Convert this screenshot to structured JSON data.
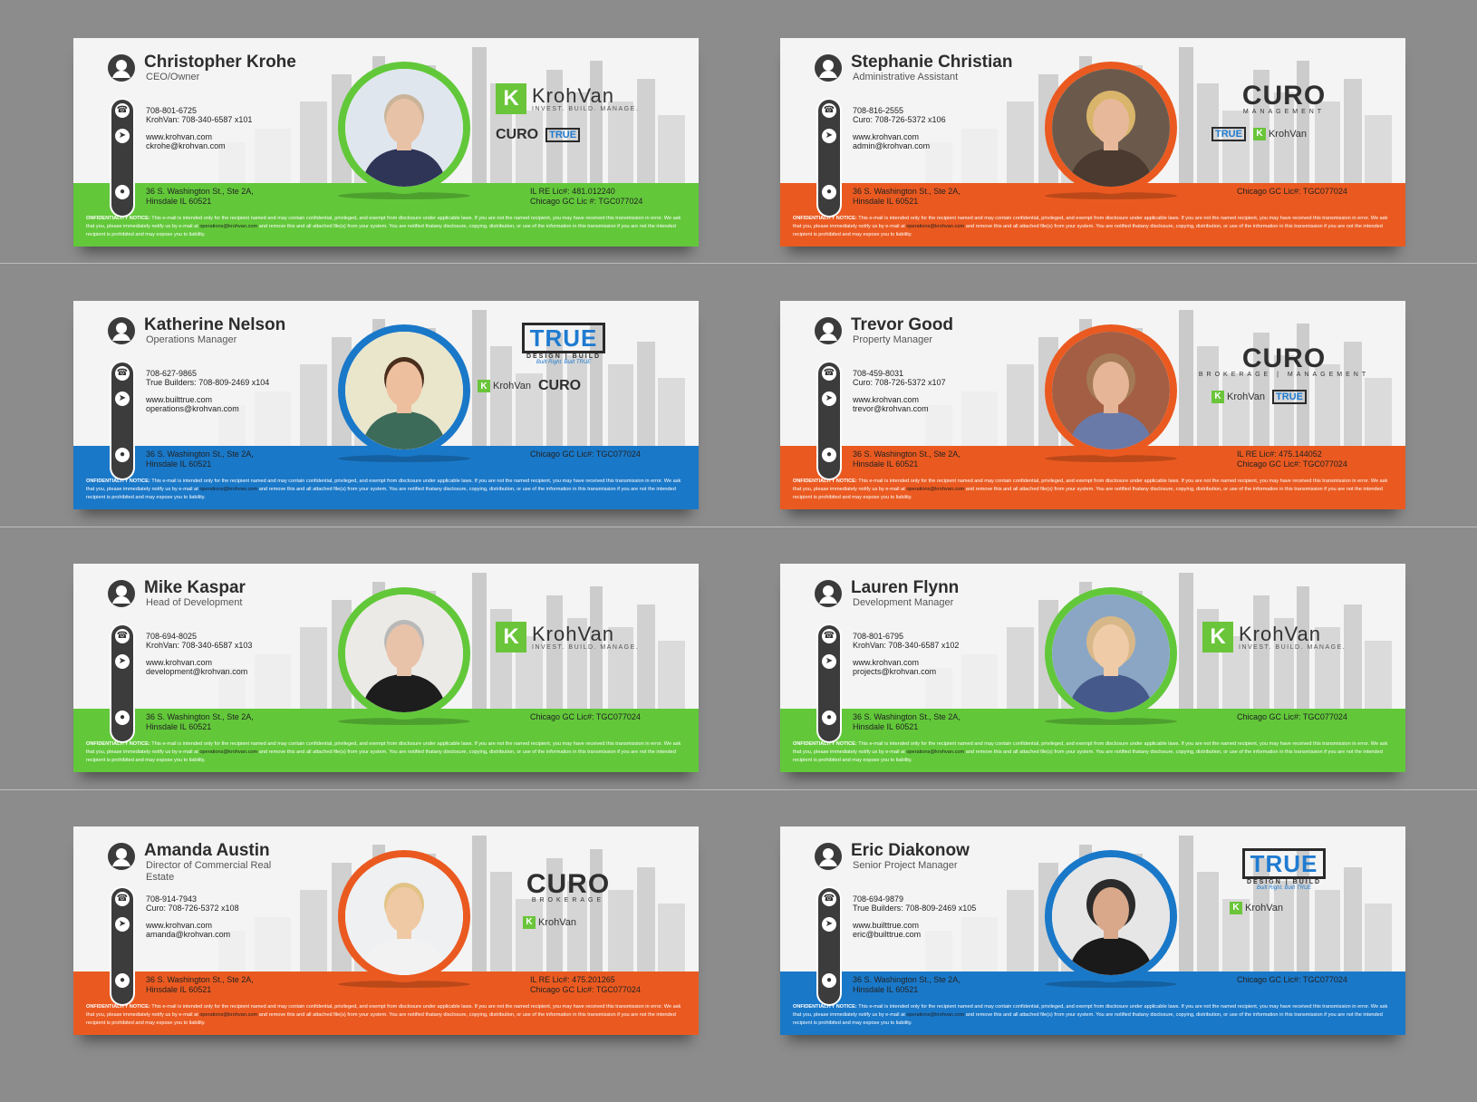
{
  "colors": {
    "green": "#62c83a",
    "orange": "#ea5a20",
    "blue": "#1a78c8"
  },
  "notice": {
    "label": "ONFIDENTIALITY NOTICE:",
    "text1": "This e-mail is intended only for the recipient named and may contain confidential, privileged, and exempt from disclosure under applicable laws. If you are not the named recipient, you may have received this transmission in error. We ask that you, please immediately notify us by e-mail at",
    "email": "operations@krohvan.com",
    "text2": "and remove this and all attached file(s) from your system. You are notified thatany disclosure, copying, distribution, or use of the information in this transmission if you are not the intended recipient is prohibited and may expose you to liability."
  },
  "brands": {
    "krohvan": "KrohVan",
    "krohvan_k": "K",
    "krohvan_tag": "INVEST. BUILD. MANAGE.",
    "curo": "CURO",
    "curo_brokerage": "BROKERAGE",
    "curo_management": "MANAGEMENT",
    "curo_brokerage_management": "BROKERAGE | MANAGEMENT",
    "true": "TRUE",
    "true_sub": "DESIGN | BUILD",
    "true_tag": "Built Right. Built TRUE"
  },
  "cards": [
    {
      "name": "Christopher Krohe",
      "title": "CEO/Owner",
      "color": "green",
      "phone1": "708-801-6725",
      "phone2": "KrohVan: 708-340-6587 x101",
      "web": "www.krohvan.com",
      "email": "ckrohe@krohvan.com",
      "addr1": "36 S. Washington St., Ste 2A,",
      "addr2": "Hinsdale IL 60521",
      "lic1": "IL RE Lic#: 481.012240",
      "lic2": "Chicago GC Lic #: TGC077024",
      "logo": "kv-main",
      "ring": "green"
    },
    {
      "name": "Stephanie Christian",
      "title": "Administrative Assistant",
      "color": "orange",
      "phone1": "708-816-2555",
      "phone2": "Curo: 708-726-5372 x106",
      "web": "www.krohvan.com",
      "email": "admin@krohvan.com",
      "addr1": "36 S. Washington St., Ste 2A,",
      "addr2": "Hinsdale IL 60521",
      "lic1": "Chicago GC Lic#: TGC077024",
      "lic2": "",
      "logo": "curo-mgmt",
      "ring": "orange"
    },
    {
      "name": "Katherine Nelson",
      "title": "Operations  Manager",
      "color": "blue",
      "phone1": "708-627-9865",
      "phone2": "True Builders: 708-809-2469 x104",
      "web": "www.builttrue.com",
      "email": "operations@krohvan.com",
      "addr1": "36 S. Washington St., Ste 2A,",
      "addr2": "Hinsdale IL 60521",
      "lic1": "Chicago GC Lic#: TGC077024",
      "lic2": "",
      "logo": "true-main",
      "ring": "blue"
    },
    {
      "name": "Trevor Good",
      "title": "Property Manager",
      "color": "orange",
      "phone1": "708-459-8031",
      "phone2": "Curo: 708-726-5372 x107",
      "web": "www.krohvan.com",
      "email": "trevor@krohvan.com",
      "addr1": "36 S. Washington St., Ste 2A,",
      "addr2": "Hinsdale IL 60521",
      "lic1": "IL RE Lic#: 475.144052",
      "lic2": "Chicago GC Lic#: TGC077024",
      "logo": "curo-bm",
      "ring": "orange"
    },
    {
      "name": "Mike Kaspar",
      "title": "Head of Development",
      "color": "green",
      "phone1": "708-694-8025",
      "phone2": "KrohVan: 708-340-6587 x103",
      "web": "www.krohvan.com",
      "email": "development@krohvan.com",
      "addr1": "36 S. Washington St., Ste 2A,",
      "addr2": "Hinsdale IL 60521",
      "lic1": "Chicago GC Lic#: TGC077024",
      "lic2": "",
      "logo": "kv-only",
      "ring": "green"
    },
    {
      "name": "Lauren Flynn",
      "title": "Development Manager",
      "color": "green",
      "phone1": "708-801-6795",
      "phone2": "KrohVan: 708-340-6587 x102",
      "web": "www.krohvan.com",
      "email": "projects@krohvan.com",
      "addr1": "36 S. Washington St., Ste 2A,",
      "addr2": "Hinsdale IL 60521",
      "lic1": "Chicago GC Lic#: TGC077024",
      "lic2": "",
      "logo": "kv-only",
      "ring": "green"
    },
    {
      "name": "Amanda Austin",
      "title": "Director of Commercial Real Estate",
      "color": "orange",
      "phone1": "708-914-7943",
      "phone2": "Curo: 708-726-5372 x108",
      "web": "www.krohvan.com",
      "email": "amanda@krohvan.com",
      "addr1": "36 S. Washington St., Ste 2A,",
      "addr2": "Hinsdale IL 60521",
      "lic1": "IL RE Lic#: 475.201265",
      "lic2": "Chicago GC Lic#: TGC077024",
      "logo": "curo-brok",
      "ring": "orange"
    },
    {
      "name": "Eric Diakonow",
      "title": "Senior Project Manager",
      "color": "blue",
      "phone1": "708-694-9879",
      "phone2": "True Builders: 708-809-2469 x105",
      "web": "www.builttrue.com",
      "email": "eric@builttrue.com",
      "addr1": "36 S. Washington St., Ste 2A,",
      "addr2": "Hinsdale IL 60521",
      "lic1": "Chicago GC Lic#: TGC077024",
      "lic2": "",
      "logo": "true-kv",
      "ring": "blue"
    }
  ]
}
